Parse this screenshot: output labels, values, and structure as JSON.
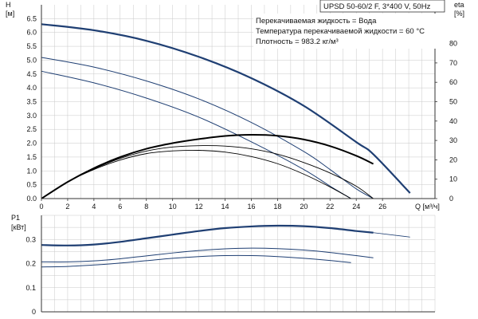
{
  "title_box": "UPSD 50-60/2 F, 3*400 V, 50Hz",
  "info_lines": [
    "Перекачиваемая жидкость = Вода",
    "Температура перекачиваемой жидкости = 60 °C",
    "Плотность = 983.2 кг/м³"
  ],
  "colors": {
    "pump_curve": "#1f3f73",
    "efficiency_curve": "#000000",
    "grid": "#c8c8c8",
    "axis": "#333333"
  },
  "chart_data": [
    {
      "type": "line",
      "title": "UPSD 50-60/2 F, 3*400 V, 50Hz",
      "xlabel": "Q [м³/ч]",
      "ylabel": "H [м]",
      "ylabel_right": "eta [%]",
      "xlim": [
        0,
        30
      ],
      "ylim": [
        0,
        7
      ],
      "ylim_right": [
        0,
        100
      ],
      "grid": true,
      "x_ticks": [
        "0",
        "2",
        "4",
        "6",
        "8",
        "10",
        "12",
        "14",
        "16",
        "18",
        "20",
        "22",
        "24",
        "26"
      ],
      "y_ticks": [
        "0.0",
        "0.5",
        "1.0",
        "1.5",
        "2.0",
        "2.5",
        "3.0",
        "3.5",
        "4.0",
        "4.5",
        "5.0",
        "5.5",
        "6.0",
        "6.5"
      ],
      "y_ticks_right": [
        "0",
        "10",
        "20",
        "30",
        "40",
        "50",
        "60",
        "70",
        "80"
      ],
      "y_ticks_right_values": [
        0,
        10,
        20,
        30,
        40,
        50,
        60,
        70,
        80
      ],
      "y_axis_title_lines": [
        "H",
        "[м]"
      ],
      "y_axis_right_title_lines": [
        "eta",
        "[%]"
      ],
      "series": [
        {
          "axis": "left",
          "style": "pump-bold",
          "x": [
            0,
            4,
            8,
            12,
            16,
            20,
            24,
            25.3,
            28.1
          ],
          "y": [
            6.3,
            6.08,
            5.7,
            5.12,
            4.35,
            3.35,
            2.04,
            1.6,
            0.2
          ]
        },
        {
          "axis": "left",
          "style": "pump",
          "x": [
            0,
            4,
            8,
            12,
            16,
            20,
            22,
            24,
            25.3
          ],
          "y": [
            5.1,
            4.75,
            4.25,
            3.6,
            2.75,
            1.7,
            1.05,
            0.35,
            0
          ]
        },
        {
          "axis": "left",
          "style": "pump",
          "x": [
            0,
            4,
            8,
            12,
            16,
            20,
            22,
            23.6
          ],
          "y": [
            4.6,
            4.18,
            3.63,
            2.94,
            2.05,
            1.05,
            0.45,
            0
          ]
        },
        {
          "axis": "right",
          "style": "eff-bold",
          "x": [
            0,
            2,
            4,
            6,
            8,
            10,
            12,
            14,
            16,
            18,
            20,
            22,
            24,
            25.3
          ],
          "y": [
            0,
            8.6,
            15.7,
            21.4,
            25.7,
            28.6,
            30.7,
            32.3,
            32.9,
            32.4,
            30.5,
            27.1,
            22.1,
            17.9
          ]
        },
        {
          "axis": "right",
          "style": "eff",
          "x": [
            0,
            2,
            4,
            6,
            8,
            10,
            12,
            14,
            16,
            18,
            20,
            22,
            24,
            25.3
          ],
          "y": [
            0,
            8.6,
            15.3,
            20.7,
            24.5,
            26.6,
            27.3,
            27.1,
            25.7,
            22.9,
            18.6,
            13.2,
            6.4,
            0
          ]
        },
        {
          "axis": "right",
          "style": "eff",
          "x": [
            0,
            2,
            4,
            6,
            8,
            10,
            12,
            14,
            16,
            18,
            20,
            22,
            23.6
          ],
          "y": [
            0,
            8.6,
            15.0,
            19.9,
            23.2,
            24.6,
            24.9,
            24.0,
            21.7,
            18.0,
            12.6,
            6.0,
            0
          ]
        }
      ]
    },
    {
      "type": "line",
      "ylabel": "P1 [кВт]",
      "xlim": [
        0,
        30
      ],
      "ylim": [
        0,
        0.4
      ],
      "grid": true,
      "y_ticks": [
        "0",
        "0.1",
        "0.2",
        "0.3"
      ],
      "y_axis_title_lines": [
        "P1",
        "[кВт]"
      ],
      "series": [
        {
          "style": "pump-bold",
          "x": [
            0,
            2,
            4,
            6,
            8,
            10,
            12,
            14,
            16,
            18,
            20,
            22,
            24,
            25.3
          ],
          "y": [
            0.277,
            0.275,
            0.279,
            0.29,
            0.305,
            0.32,
            0.335,
            0.347,
            0.354,
            0.357,
            0.355,
            0.347,
            0.335,
            0.328
          ]
        },
        {
          "style": "pump-thin",
          "x": [
            25.3,
            28.1
          ],
          "y": [
            0.328,
            0.31
          ]
        },
        {
          "style": "pump",
          "x": [
            0,
            2,
            4,
            6,
            8,
            10,
            12,
            14,
            16,
            18,
            20,
            22,
            24,
            25.3
          ],
          "y": [
            0.207,
            0.207,
            0.211,
            0.22,
            0.232,
            0.244,
            0.254,
            0.261,
            0.264,
            0.262,
            0.256,
            0.246,
            0.233,
            0.224
          ]
        },
        {
          "style": "pump",
          "x": [
            0,
            2,
            4,
            6,
            8,
            10,
            12,
            14,
            16,
            18,
            20,
            22,
            23.6
          ],
          "y": [
            0.186,
            0.188,
            0.194,
            0.202,
            0.212,
            0.222,
            0.229,
            0.233,
            0.233,
            0.229,
            0.222,
            0.213,
            0.204
          ]
        }
      ]
    }
  ]
}
